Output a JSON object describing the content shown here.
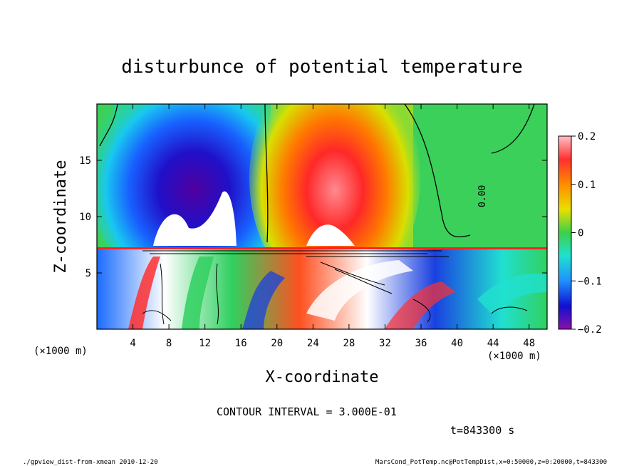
{
  "chart_data": {
    "type": "heatmap",
    "title": "disturbunce of potential temperature",
    "xlabel": "X-coordinate",
    "ylabel": "Z-coordinate",
    "x_unit": "(×1000 m)",
    "y_unit": "(×1000 m)",
    "x_ticks": [
      4,
      8,
      12,
      16,
      20,
      24,
      28,
      32,
      36,
      40,
      44,
      48
    ],
    "y_ticks": [
      5,
      10,
      15
    ],
    "xlim": [
      0,
      50
    ],
    "ylim": [
      0,
      20
    ],
    "colorbar": {
      "ticks": [
        0.2,
        0.1,
        0,
        -0.1,
        -0.2
      ],
      "tick_labels": [
        "0.2",
        "0.1",
        "0",
        "−0.1",
        "−0.2"
      ],
      "range": [
        -0.2,
        0.2
      ]
    },
    "contour_label": "0.00",
    "features_upper": [
      {
        "x": 11,
        "z": 12,
        "value": -0.2
      },
      {
        "x": 26,
        "z": 12,
        "value": 0.2
      },
      {
        "x": 2,
        "z": 10,
        "value": 0.0
      },
      {
        "x": 46,
        "z": 10,
        "value": 0.0
      }
    ],
    "contour_interval_text": "CONTOUR INTERVAL = 3.000E-01",
    "time_text": "t=843300 s",
    "footer_left": "./gpview_dist-from-xmean  2010-12-20",
    "footer_right": "MarsCond_PotTemp.nc@PotTempDist,x=0:50000,z=0:20000,t=843300"
  }
}
